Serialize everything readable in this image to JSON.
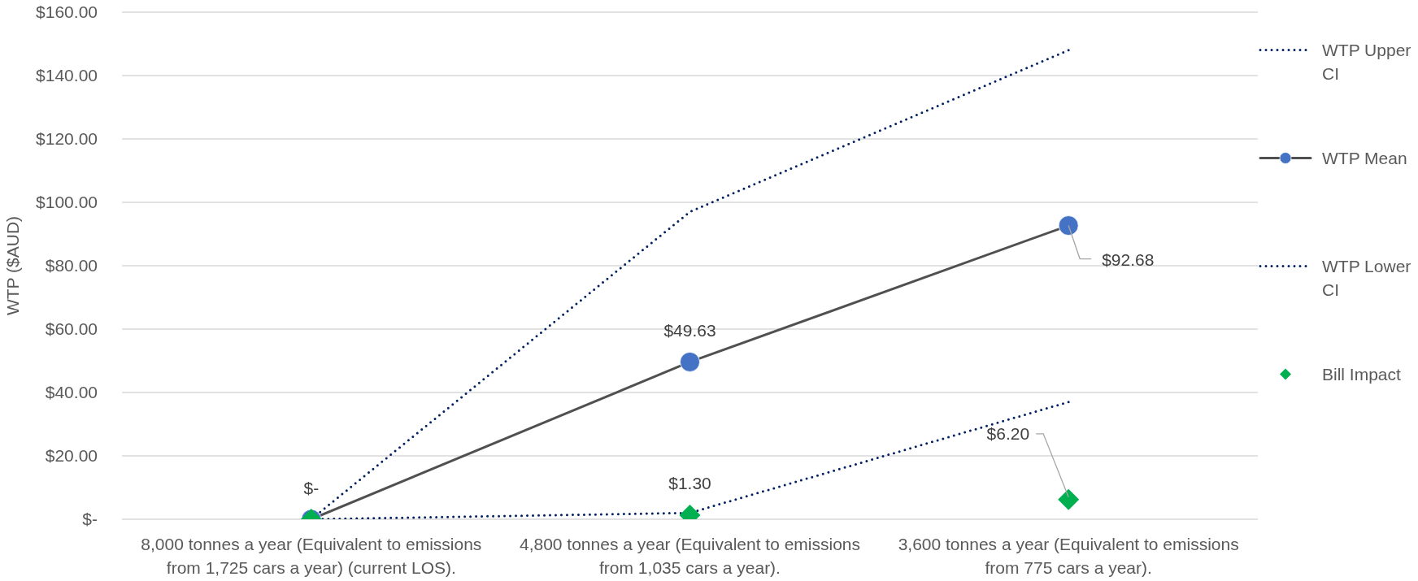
{
  "chart_data": {
    "type": "line",
    "categories": [
      "8,000 tonnes a year (Equivalent to emissions from 1,725 cars a year) (current LOS).",
      "4,800 tonnes a year (Equivalent to emissions from 1,035 cars a year).",
      "3,600 tonnes a year (Equivalent to emissions from 775 cars a year)."
    ],
    "ylabel": "WTP ($AUD)",
    "ylim": [
      0,
      160
    ],
    "yticks": [
      {
        "value": 0,
        "label": "$-"
      },
      {
        "value": 20,
        "label": "$20.00"
      },
      {
        "value": 40,
        "label": "$40.00"
      },
      {
        "value": 60,
        "label": "$60.00"
      },
      {
        "value": 80,
        "label": "$80.00"
      },
      {
        "value": 100,
        "label": "$100.00"
      },
      {
        "value": 120,
        "label": "$120.00"
      },
      {
        "value": 140,
        "label": "$140.00"
      },
      {
        "value": 160,
        "label": "$160.00"
      }
    ],
    "grid": "y",
    "legend": "right",
    "series": [
      {
        "name": "WTP Upper CI",
        "color": "#002060",
        "values": [
          0,
          97,
          148
        ],
        "line_style": "dotted",
        "marker": "none"
      },
      {
        "name": "WTP Mean",
        "color": "#505050",
        "colors": [
          "#4472c4",
          "#4472c4",
          "#4472c4"
        ],
        "values": [
          0,
          49.63,
          92.68
        ],
        "line_style": "solid",
        "marker": "circle",
        "value_labels": [
          "$-",
          "$49.63",
          "$92.68"
        ]
      },
      {
        "name": "WTP Lower CI",
        "color": "#002060",
        "values": [
          0,
          2,
          37
        ],
        "line_style": "dotted",
        "marker": "none"
      },
      {
        "name": "Bill Impact",
        "type": "scatter",
        "color": "#00b050",
        "values": [
          0,
          1.3,
          6.2
        ],
        "marker": "diamond",
        "value_labels": [
          null,
          "$1.30",
          "$6.20"
        ]
      }
    ]
  }
}
